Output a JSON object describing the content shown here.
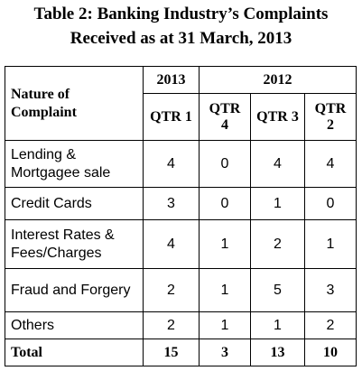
{
  "title": [
    "Table 2: Banking Industry’s Complaints",
    "Received as at 31 March, 2013"
  ],
  "table": {
    "corner": "Nature of Complaint",
    "years": [
      "2013",
      "2012"
    ],
    "quarters": [
      "QTR 1",
      "QTR 4",
      "QTR 3",
      "QTR 2"
    ],
    "rows": [
      [
        "Lending & Mortgagee sale",
        4,
        0,
        4,
        4
      ],
      [
        "Credit Cards",
        3,
        0,
        1,
        0
      ],
      [
        "Interest Rates & Fees/Charges",
        4,
        1,
        2,
        1
      ],
      [
        "Fraud and Forgery",
        2,
        1,
        5,
        3
      ],
      [
        "Others",
        2,
        1,
        1,
        2
      ]
    ],
    "total": [
      "Total",
      15,
      3,
      13,
      10
    ]
  }
}
